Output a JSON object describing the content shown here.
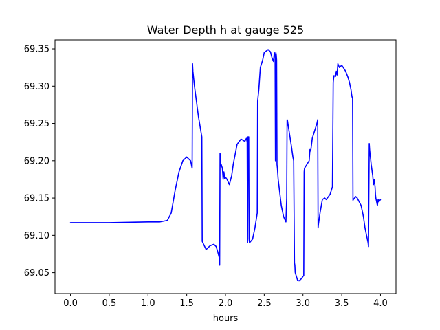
{
  "chart_data": {
    "type": "line",
    "title": "Water Depth h at gauge 525",
    "xlabel": "hours",
    "ylabel": "",
    "xlim": [
      -0.2,
      4.2
    ],
    "ylim": [
      69.022,
      69.362
    ],
    "x_ticks": [
      0.0,
      0.5,
      1.0,
      1.5,
      2.0,
      2.5,
      3.0,
      3.5,
      4.0
    ],
    "x_tick_labels": [
      "0.0",
      "0.5",
      "1.0",
      "1.5",
      "2.0",
      "2.5",
      "3.0",
      "3.5",
      "4.0"
    ],
    "y_ticks": [
      69.05,
      69.1,
      69.15,
      69.2,
      69.25,
      69.3,
      69.35
    ],
    "y_tick_labels": [
      "69.05",
      "69.10",
      "69.15",
      "69.20",
      "69.25",
      "69.30",
      "69.35"
    ],
    "grid": false,
    "series": [
      {
        "color": "#0000ff",
        "x": [
          0.0,
          0.5,
          1.0,
          1.05,
          1.1,
          1.15,
          1.2,
          1.25,
          1.3,
          1.35,
          1.4,
          1.45,
          1.5,
          1.55,
          1.57,
          1.575,
          1.58,
          1.6,
          1.65,
          1.69,
          1.695,
          1.7,
          1.75,
          1.8,
          1.85,
          1.88,
          1.9,
          1.92,
          1.925,
          1.93,
          1.935,
          1.94,
          1.945,
          1.96,
          1.97,
          1.98,
          1.99,
          2.0,
          2.02,
          2.05,
          2.08,
          2.1,
          2.15,
          2.2,
          2.25,
          2.27,
          2.28,
          2.285,
          2.29,
          2.295,
          2.3,
          2.305,
          2.31,
          2.35,
          2.38,
          2.41,
          2.415,
          2.42,
          2.43,
          2.45,
          2.48,
          2.5,
          2.55,
          2.58,
          2.6,
          2.62,
          2.63,
          2.64,
          2.645,
          2.65,
          2.655,
          2.66,
          2.665,
          2.67,
          2.68,
          2.72,
          2.75,
          2.78,
          2.79,
          2.795,
          2.8,
          2.82,
          2.85,
          2.87,
          2.88,
          2.89,
          2.895,
          2.9,
          2.93,
          2.95,
          2.98,
          3.0,
          3.01,
          3.015,
          3.02,
          3.05,
          3.08,
          3.09,
          3.1,
          3.12,
          3.15,
          3.18,
          3.19,
          3.195,
          3.2,
          3.22,
          3.25,
          3.28,
          3.3,
          3.35,
          3.38,
          3.39,
          3.395,
          3.4,
          3.42,
          3.43,
          3.44,
          3.45,
          3.47,
          3.5,
          3.52,
          3.55,
          3.58,
          3.6,
          3.62,
          3.63,
          3.635,
          3.64,
          3.645,
          3.65,
          3.68,
          3.7,
          3.75,
          3.78,
          3.8,
          3.82,
          3.84,
          3.845,
          3.85,
          3.855,
          3.86,
          3.87,
          3.88,
          3.9,
          3.91,
          3.92,
          3.93,
          3.935,
          3.94,
          3.95,
          3.96,
          3.97,
          3.98,
          4.0
        ],
        "y": [
          69.117,
          69.117,
          69.118,
          69.118,
          69.118,
          69.118,
          69.119,
          69.12,
          69.13,
          69.16,
          69.185,
          69.2,
          69.205,
          69.2,
          69.19,
          69.33,
          69.32,
          69.3,
          69.26,
          69.235,
          69.232,
          69.092,
          69.081,
          69.086,
          69.088,
          69.085,
          69.078,
          69.07,
          69.06,
          69.21,
          69.2,
          69.193,
          69.195,
          69.19,
          69.175,
          69.185,
          69.176,
          69.178,
          69.175,
          69.168,
          69.18,
          69.195,
          69.222,
          69.229,
          69.226,
          69.23,
          69.225,
          69.09,
          69.232,
          69.225,
          69.232,
          69.095,
          69.09,
          69.095,
          69.11,
          69.13,
          69.28,
          69.285,
          69.295,
          69.325,
          69.335,
          69.345,
          69.349,
          69.346,
          69.338,
          69.333,
          69.345,
          69.342,
          69.2,
          69.345,
          69.342,
          69.335,
          69.195,
          69.19,
          69.175,
          69.14,
          69.125,
          69.118,
          69.15,
          69.255,
          69.254,
          69.24,
          69.22,
          69.205,
          69.2,
          69.063,
          69.06,
          69.05,
          69.04,
          69.039,
          69.042,
          69.045,
          69.046,
          69.185,
          69.19,
          69.195,
          69.2,
          69.215,
          69.213,
          69.23,
          69.24,
          69.25,
          69.255,
          69.11,
          69.115,
          69.13,
          69.148,
          69.15,
          69.148,
          69.155,
          69.165,
          69.305,
          69.31,
          69.314,
          69.313,
          69.32,
          69.315,
          69.33,
          69.325,
          69.328,
          69.325,
          69.32,
          69.312,
          69.305,
          69.295,
          69.287,
          69.285,
          69.285,
          69.147,
          69.148,
          69.152,
          69.15,
          69.14,
          69.125,
          69.11,
          69.1,
          69.09,
          69.085,
          69.155,
          69.223,
          69.215,
          69.205,
          69.195,
          69.18,
          69.168,
          69.175,
          69.165,
          69.155,
          69.15,
          69.145,
          69.14,
          69.148,
          69.145,
          69.148
        ]
      }
    ]
  }
}
